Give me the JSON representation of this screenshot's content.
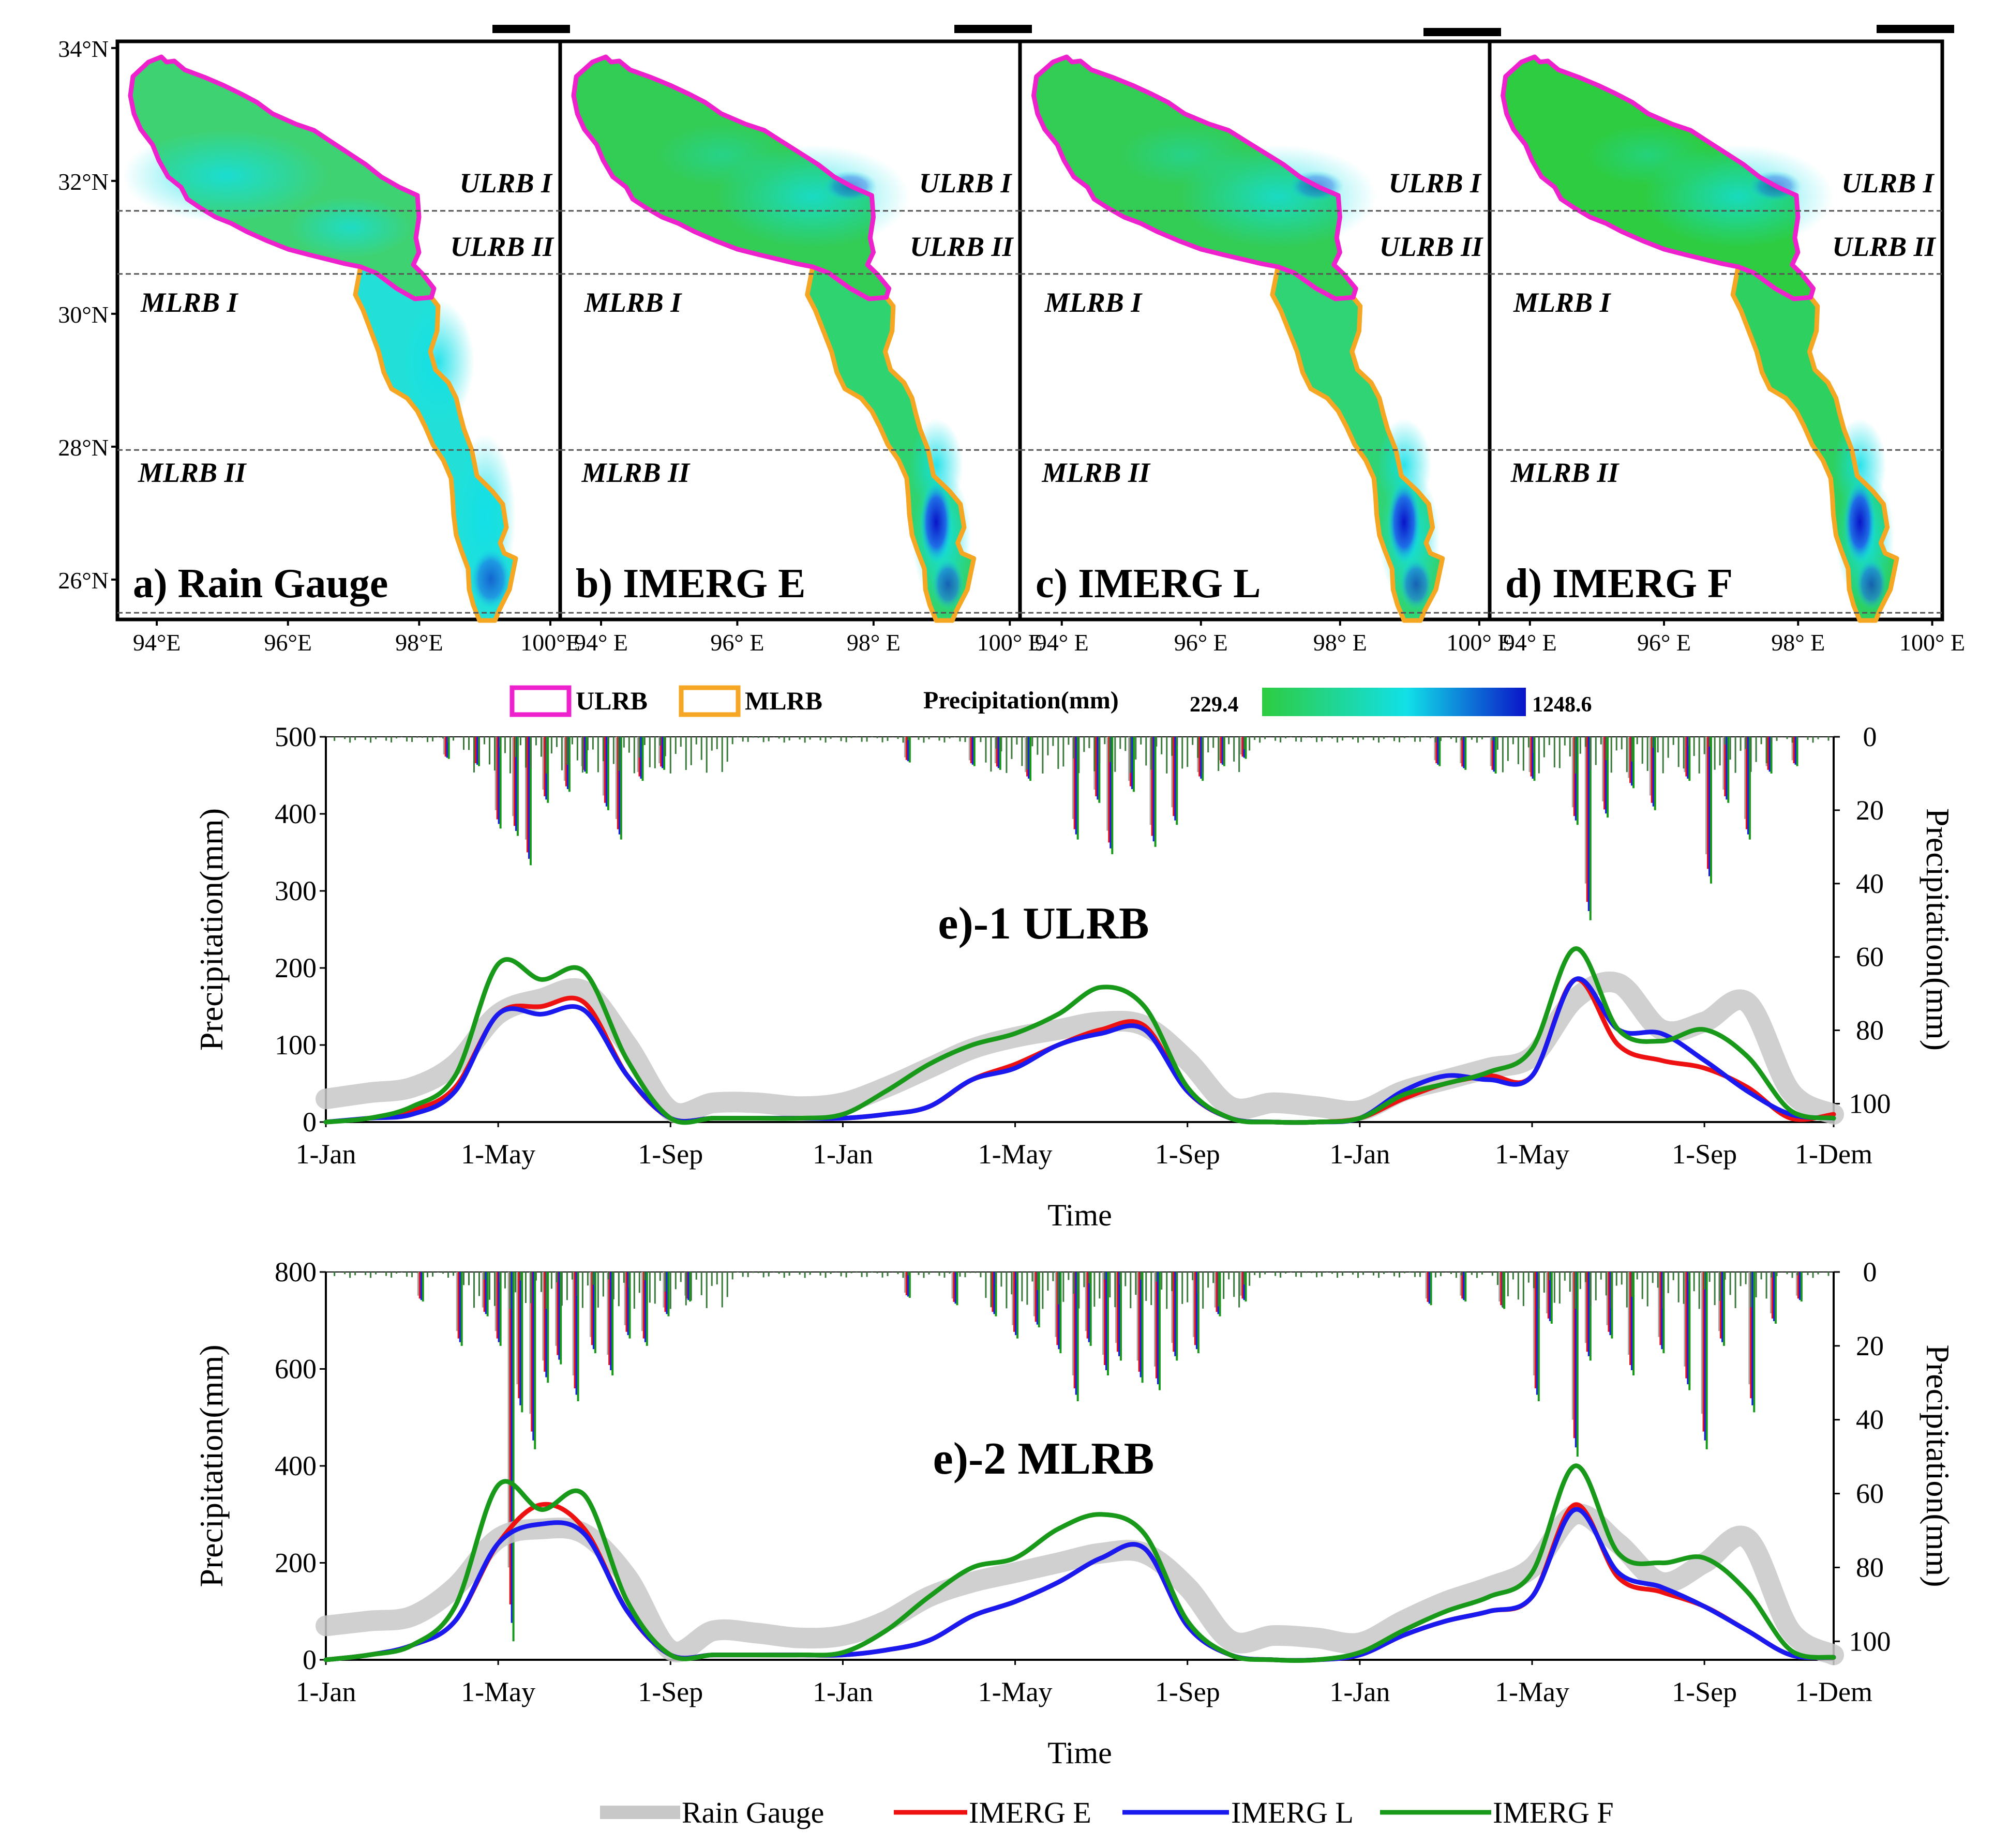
{
  "colors": {
    "ulrb": "#ee22cc",
    "mlrb": "#f5a623",
    "rain_gauge": "#c8c8c8",
    "imerg_e": "#ee1111",
    "imerg_l": "#1a1aee",
    "imerg_f": "#199919",
    "cmap_low": "#2ecc40",
    "cmap_mid": "#11e0e8",
    "cmap_high": "#0a14c8"
  },
  "maps": {
    "lat_ticks": [
      "34°N",
      "32°N",
      "30°N",
      "28°N",
      "26°N"
    ],
    "lat_values": [
      34,
      32,
      30,
      28,
      26
    ],
    "lat_range": [
      25.4,
      34.1
    ],
    "lon_range": [
      93.4,
      100.15
    ],
    "region_lines_lat": [
      31.55,
      30.6,
      27.95,
      25.5
    ],
    "panels": [
      {
        "label": "a) Rain Gauge",
        "lon_ticks": [
          "94°E",
          "96°E",
          "98°E",
          "100°E"
        ],
        "shade": "gauge"
      },
      {
        "label": "b) IMERG E",
        "lon_ticks": [
          "94° E",
          "96° E",
          "98° E",
          "100° E"
        ],
        "shade": "e"
      },
      {
        "label": "c) IMERG L",
        "lon_ticks": [
          "94° E",
          "96° E",
          "98° E",
          "100° E"
        ],
        "shade": "l"
      },
      {
        "label": "d) IMERG F",
        "lon_ticks": [
          "94° E",
          "96° E",
          "98° E",
          "100° E"
        ],
        "shade": "f"
      }
    ],
    "region_labels": {
      "ulrb_i": "ULRB I",
      "ulrb_ii": "ULRB II",
      "mlrb_i": "MLRB I",
      "mlrb_ii": "MLRB II"
    },
    "legend": {
      "ulrb": "ULRB",
      "mlrb": "MLRB",
      "precip_title": "Precipitation(mm)",
      "min": "229.4",
      "max": "1248.6"
    }
  },
  "chart_data": [
    {
      "type": "line",
      "id": "e1",
      "title": "e)-1 ULRB",
      "xlabel": "Time",
      "ylabel": "Precipitation(mm)",
      "y2label": "Precipitation(mm)",
      "x_range_months": [
        0,
        35
      ],
      "x_ticks": [
        {
          "m": 0,
          "label": "1-Jan"
        },
        {
          "m": 4,
          "label": "1-May"
        },
        {
          "m": 8,
          "label": "1-Sep"
        },
        {
          "m": 12,
          "label": "1-Jan"
        },
        {
          "m": 16,
          "label": "1-May"
        },
        {
          "m": 20,
          "label": "1-Sep"
        },
        {
          "m": 24,
          "label": "1-Jan"
        },
        {
          "m": 28,
          "label": "1-May"
        },
        {
          "m": 32,
          "label": "1-Sep"
        },
        {
          "m": 35,
          "label": "1-Dem"
        }
      ],
      "ylim": [
        0,
        500
      ],
      "y_ticks": [
        0,
        100,
        200,
        300,
        400,
        500
      ],
      "y2lim": [
        0,
        105
      ],
      "y2_ticks": [
        0,
        20,
        40,
        60,
        80,
        100
      ],
      "x_months": [
        0,
        1,
        2,
        3,
        4,
        5,
        6,
        7,
        8,
        9,
        10,
        11,
        12,
        13,
        14,
        15,
        16,
        17,
        18,
        19,
        20,
        21,
        22,
        23,
        24,
        25,
        26,
        27,
        28,
        29,
        30,
        31,
        32,
        33,
        34,
        35
      ],
      "series": [
        {
          "name": "Rain Gauge",
          "values": [
            30,
            38,
            45,
            75,
            140,
            160,
            170,
            100,
            15,
            25,
            25,
            20,
            25,
            45,
            70,
            95,
            110,
            120,
            130,
            125,
            80,
            20,
            25,
            20,
            15,
            40,
            55,
            70,
            85,
            160,
            180,
            120,
            130,
            155,
            40,
            10
          ]
        },
        {
          "name": "IMERG E",
          "values": [
            0,
            5,
            15,
            45,
            140,
            150,
            155,
            60,
            5,
            5,
            5,
            5,
            5,
            10,
            20,
            55,
            75,
            100,
            120,
            125,
            40,
            5,
            0,
            0,
            5,
            30,
            50,
            60,
            60,
            185,
            100,
            80,
            70,
            45,
            5,
            10
          ]
        },
        {
          "name": "IMERG L",
          "values": [
            0,
            5,
            10,
            40,
            140,
            140,
            145,
            60,
            5,
            5,
            5,
            5,
            5,
            10,
            20,
            55,
            70,
            100,
            115,
            120,
            40,
            5,
            0,
            0,
            5,
            40,
            60,
            55,
            60,
            185,
            120,
            115,
            80,
            40,
            10,
            5
          ]
        },
        {
          "name": "IMERG F",
          "values": [
            0,
            5,
            20,
            60,
            205,
            185,
            195,
            80,
            5,
            5,
            5,
            5,
            10,
            40,
            75,
            100,
            115,
            140,
            175,
            150,
            45,
            5,
            0,
            0,
            5,
            35,
            50,
            65,
            95,
            225,
            120,
            105,
            120,
            85,
            15,
            5
          ]
        }
      ],
      "spikes": [
        {
          "m": 4.0,
          "v": 25
        },
        {
          "m": 4.4,
          "v": 27
        },
        {
          "m": 4.7,
          "v": 35
        },
        {
          "m": 5.1,
          "v": 18
        },
        {
          "m": 5.6,
          "v": 15
        },
        {
          "m": 6.0,
          "v": 10
        },
        {
          "m": 6.5,
          "v": 20
        },
        {
          "m": 6.8,
          "v": 28
        },
        {
          "m": 7.3,
          "v": 12
        },
        {
          "m": 3.5,
          "v": 8
        },
        {
          "m": 2.8,
          "v": 6
        },
        {
          "m": 7.8,
          "v": 9
        },
        {
          "m": 13.5,
          "v": 7
        },
        {
          "m": 15.0,
          "v": 8
        },
        {
          "m": 15.6,
          "v": 9
        },
        {
          "m": 16.3,
          "v": 12
        },
        {
          "m": 17.4,
          "v": 28
        },
        {
          "m": 17.9,
          "v": 18
        },
        {
          "m": 18.2,
          "v": 32
        },
        {
          "m": 18.7,
          "v": 15
        },
        {
          "m": 19.2,
          "v": 30
        },
        {
          "m": 19.7,
          "v": 24
        },
        {
          "m": 20.3,
          "v": 12
        },
        {
          "m": 20.8,
          "v": 8
        },
        {
          "m": 21.3,
          "v": 6
        },
        {
          "m": 25.8,
          "v": 8
        },
        {
          "m": 26.4,
          "v": 9
        },
        {
          "m": 27.1,
          "v": 10
        },
        {
          "m": 28.0,
          "v": 12
        },
        {
          "m": 29.0,
          "v": 24
        },
        {
          "m": 29.3,
          "v": 50
        },
        {
          "m": 29.7,
          "v": 22
        },
        {
          "m": 30.3,
          "v": 14
        },
        {
          "m": 30.8,
          "v": 20
        },
        {
          "m": 31.6,
          "v": 12
        },
        {
          "m": 32.1,
          "v": 40
        },
        {
          "m": 32.5,
          "v": 18
        },
        {
          "m": 33.0,
          "v": 28
        },
        {
          "m": 33.5,
          "v": 10
        },
        {
          "m": 34.1,
          "v": 8
        }
      ]
    },
    {
      "type": "line",
      "id": "e2",
      "title": "e)-2 MLRB",
      "xlabel": "Time",
      "ylabel": "Precipitation(mm)",
      "y2label": "Precipitation(mm)",
      "x_range_months": [
        0,
        35
      ],
      "x_ticks": [
        {
          "m": 0,
          "label": "1-Jan"
        },
        {
          "m": 4,
          "label": "1-May"
        },
        {
          "m": 8,
          "label": "1-Sep"
        },
        {
          "m": 12,
          "label": "1-Jan"
        },
        {
          "m": 16,
          "label": "1-May"
        },
        {
          "m": 20,
          "label": "1-Sep"
        },
        {
          "m": 24,
          "label": "1-Jan"
        },
        {
          "m": 28,
          "label": "1-May"
        },
        {
          "m": 32,
          "label": "1-Sep"
        },
        {
          "m": 35,
          "label": "1-Dem"
        }
      ],
      "ylim": [
        0,
        800
      ],
      "y_ticks": [
        0,
        200,
        400,
        600,
        800
      ],
      "y2lim": [
        0,
        105
      ],
      "y2_ticks": [
        0,
        20,
        40,
        60,
        80,
        100
      ],
      "x_months": [
        0,
        1,
        2,
        3,
        4,
        5,
        6,
        7,
        8,
        9,
        10,
        11,
        12,
        13,
        14,
        15,
        16,
        17,
        18,
        19,
        20,
        21,
        22,
        23,
        24,
        25,
        26,
        27,
        28,
        29,
        30,
        31,
        32,
        33,
        34,
        35
      ],
      "series": [
        {
          "name": "Rain Gauge",
          "values": [
            70,
            80,
            90,
            150,
            250,
            270,
            260,
            170,
            20,
            60,
            55,
            45,
            50,
            80,
            130,
            160,
            180,
            200,
            220,
            220,
            150,
            40,
            50,
            45,
            35,
            80,
            120,
            150,
            190,
            300,
            240,
            160,
            200,
            250,
            60,
            10
          ]
        },
        {
          "name": "IMERG E",
          "values": [
            0,
            10,
            30,
            80,
            240,
            320,
            270,
            100,
            10,
            10,
            10,
            10,
            10,
            20,
            40,
            90,
            120,
            160,
            210,
            230,
            70,
            10,
            0,
            0,
            10,
            50,
            80,
            100,
            130,
            320,
            170,
            140,
            110,
            60,
            10,
            5
          ]
        },
        {
          "name": "IMERG L",
          "values": [
            0,
            10,
            30,
            80,
            240,
            280,
            260,
            100,
            10,
            10,
            10,
            10,
            10,
            20,
            40,
            90,
            120,
            160,
            210,
            230,
            70,
            10,
            0,
            0,
            10,
            50,
            80,
            100,
            130,
            310,
            180,
            150,
            110,
            60,
            10,
            5
          ]
        },
        {
          "name": "IMERG F",
          "values": [
            0,
            10,
            30,
            110,
            360,
            310,
            340,
            120,
            10,
            10,
            10,
            10,
            15,
            60,
            130,
            190,
            210,
            270,
            300,
            260,
            80,
            10,
            0,
            0,
            15,
            60,
            100,
            130,
            180,
            400,
            220,
            200,
            210,
            140,
            20,
            5
          ]
        }
      ],
      "spikes": [
        {
          "m": 2.2,
          "v": 8
        },
        {
          "m": 3.1,
          "v": 20
        },
        {
          "m": 3.7,
          "v": 12
        },
        {
          "m": 4.0,
          "v": 20
        },
        {
          "m": 4.3,
          "v": 100
        },
        {
          "m": 4.5,
          "v": 38
        },
        {
          "m": 4.8,
          "v": 48
        },
        {
          "m": 5.1,
          "v": 30
        },
        {
          "m": 5.4,
          "v": 25
        },
        {
          "m": 5.8,
          "v": 35
        },
        {
          "m": 6.2,
          "v": 22
        },
        {
          "m": 6.6,
          "v": 28
        },
        {
          "m": 7.0,
          "v": 18
        },
        {
          "m": 7.4,
          "v": 20
        },
        {
          "m": 7.9,
          "v": 12
        },
        {
          "m": 8.4,
          "v": 8
        },
        {
          "m": 13.5,
          "v": 7
        },
        {
          "m": 14.6,
          "v": 9
        },
        {
          "m": 15.5,
          "v": 12
        },
        {
          "m": 16.0,
          "v": 18
        },
        {
          "m": 16.5,
          "v": 15
        },
        {
          "m": 17.0,
          "v": 22
        },
        {
          "m": 17.4,
          "v": 35
        },
        {
          "m": 17.7,
          "v": 20
        },
        {
          "m": 18.1,
          "v": 28
        },
        {
          "m": 18.4,
          "v": 24
        },
        {
          "m": 18.9,
          "v": 30
        },
        {
          "m": 19.3,
          "v": 32
        },
        {
          "m": 19.7,
          "v": 24
        },
        {
          "m": 20.2,
          "v": 22
        },
        {
          "m": 20.7,
          "v": 12
        },
        {
          "m": 21.3,
          "v": 8
        },
        {
          "m": 25.6,
          "v": 9
        },
        {
          "m": 26.4,
          "v": 8
        },
        {
          "m": 27.3,
          "v": 10
        },
        {
          "m": 28.1,
          "v": 35
        },
        {
          "m": 28.4,
          "v": 14
        },
        {
          "m": 29.0,
          "v": 50
        },
        {
          "m": 29.3,
          "v": 24
        },
        {
          "m": 29.8,
          "v": 18
        },
        {
          "m": 30.3,
          "v": 28
        },
        {
          "m": 31.0,
          "v": 22
        },
        {
          "m": 31.6,
          "v": 32
        },
        {
          "m": 32.0,
          "v": 48
        },
        {
          "m": 32.4,
          "v": 20
        },
        {
          "m": 33.1,
          "v": 38
        },
        {
          "m": 33.6,
          "v": 14
        },
        {
          "m": 34.2,
          "v": 8
        }
      ]
    }
  ],
  "bottom_legend": {
    "items": [
      "Rain Gauge",
      "IMERG E",
      "IMERG L",
      "IMERG F"
    ]
  }
}
